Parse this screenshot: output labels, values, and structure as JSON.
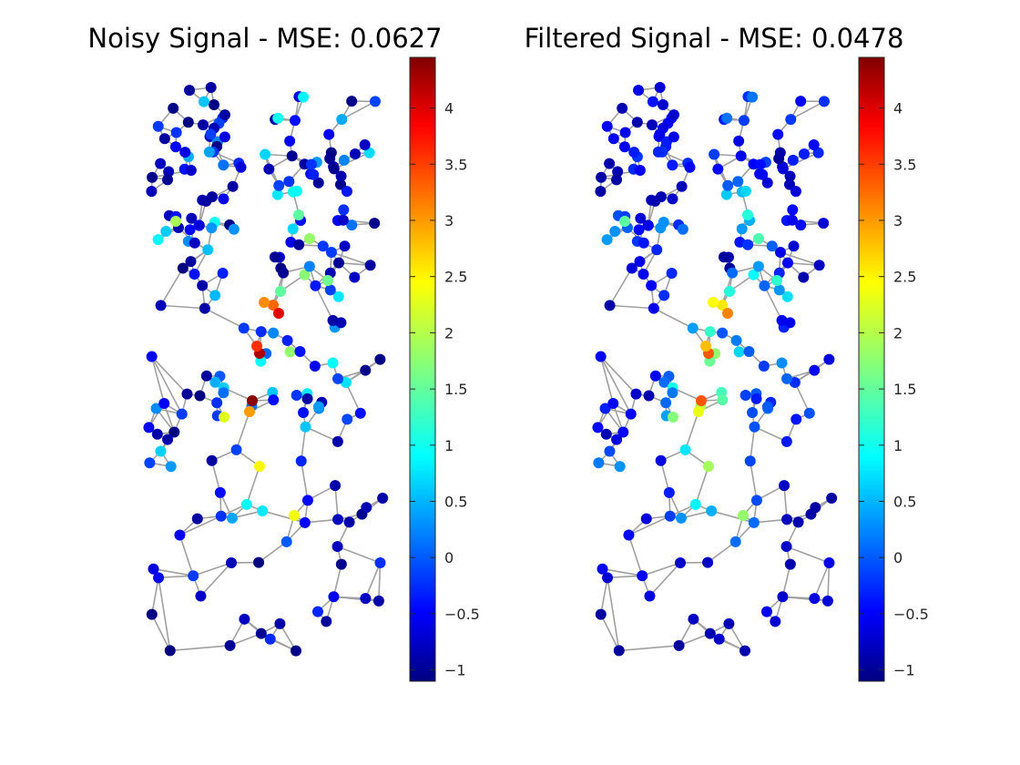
{
  "chart_data": [
    {
      "type": "scatter",
      "title": "Noisy Signal - MSE: 0.0627",
      "colormap": "jet",
      "clim": [
        -1.1,
        4.45
      ],
      "colorbar_ticks": [
        "-1",
        "-0.5",
        "0",
        "0.5",
        "1",
        "1.5",
        "2",
        "2.5",
        "3",
        "3.5",
        "4"
      ],
      "axes_visible": false,
      "edge_color": "#a0a0a0",
      "node_values_note": "Node values in [-1.1, 4.45]; most near -1..0.5, a few peaks up to ~4.4 along central path",
      "peak_values": [
        4.4,
        4.2,
        3.9,
        3.5,
        3.2,
        3.0,
        2.4,
        2.3,
        1.9,
        1.8,
        1.5
      ]
    },
    {
      "type": "scatter",
      "title": "Filtered Signal - MSE: 0.0478",
      "colormap": "jet",
      "clim": [
        -1.1,
        4.45
      ],
      "colorbar_ticks": [
        "-1",
        "-0.5",
        "0",
        "0.5",
        "1",
        "1.5",
        "2",
        "2.5",
        "3",
        "3.5",
        "4"
      ],
      "axes_visible": false,
      "edge_color": "#a0a0a0",
      "node_values_note": "Smoothed version of the same graph signal",
      "peak_values": [
        3.3,
        3.2,
        3.1,
        2.9,
        2.5,
        2.4,
        2.2,
        1.9,
        1.7,
        1.5
      ]
    }
  ]
}
